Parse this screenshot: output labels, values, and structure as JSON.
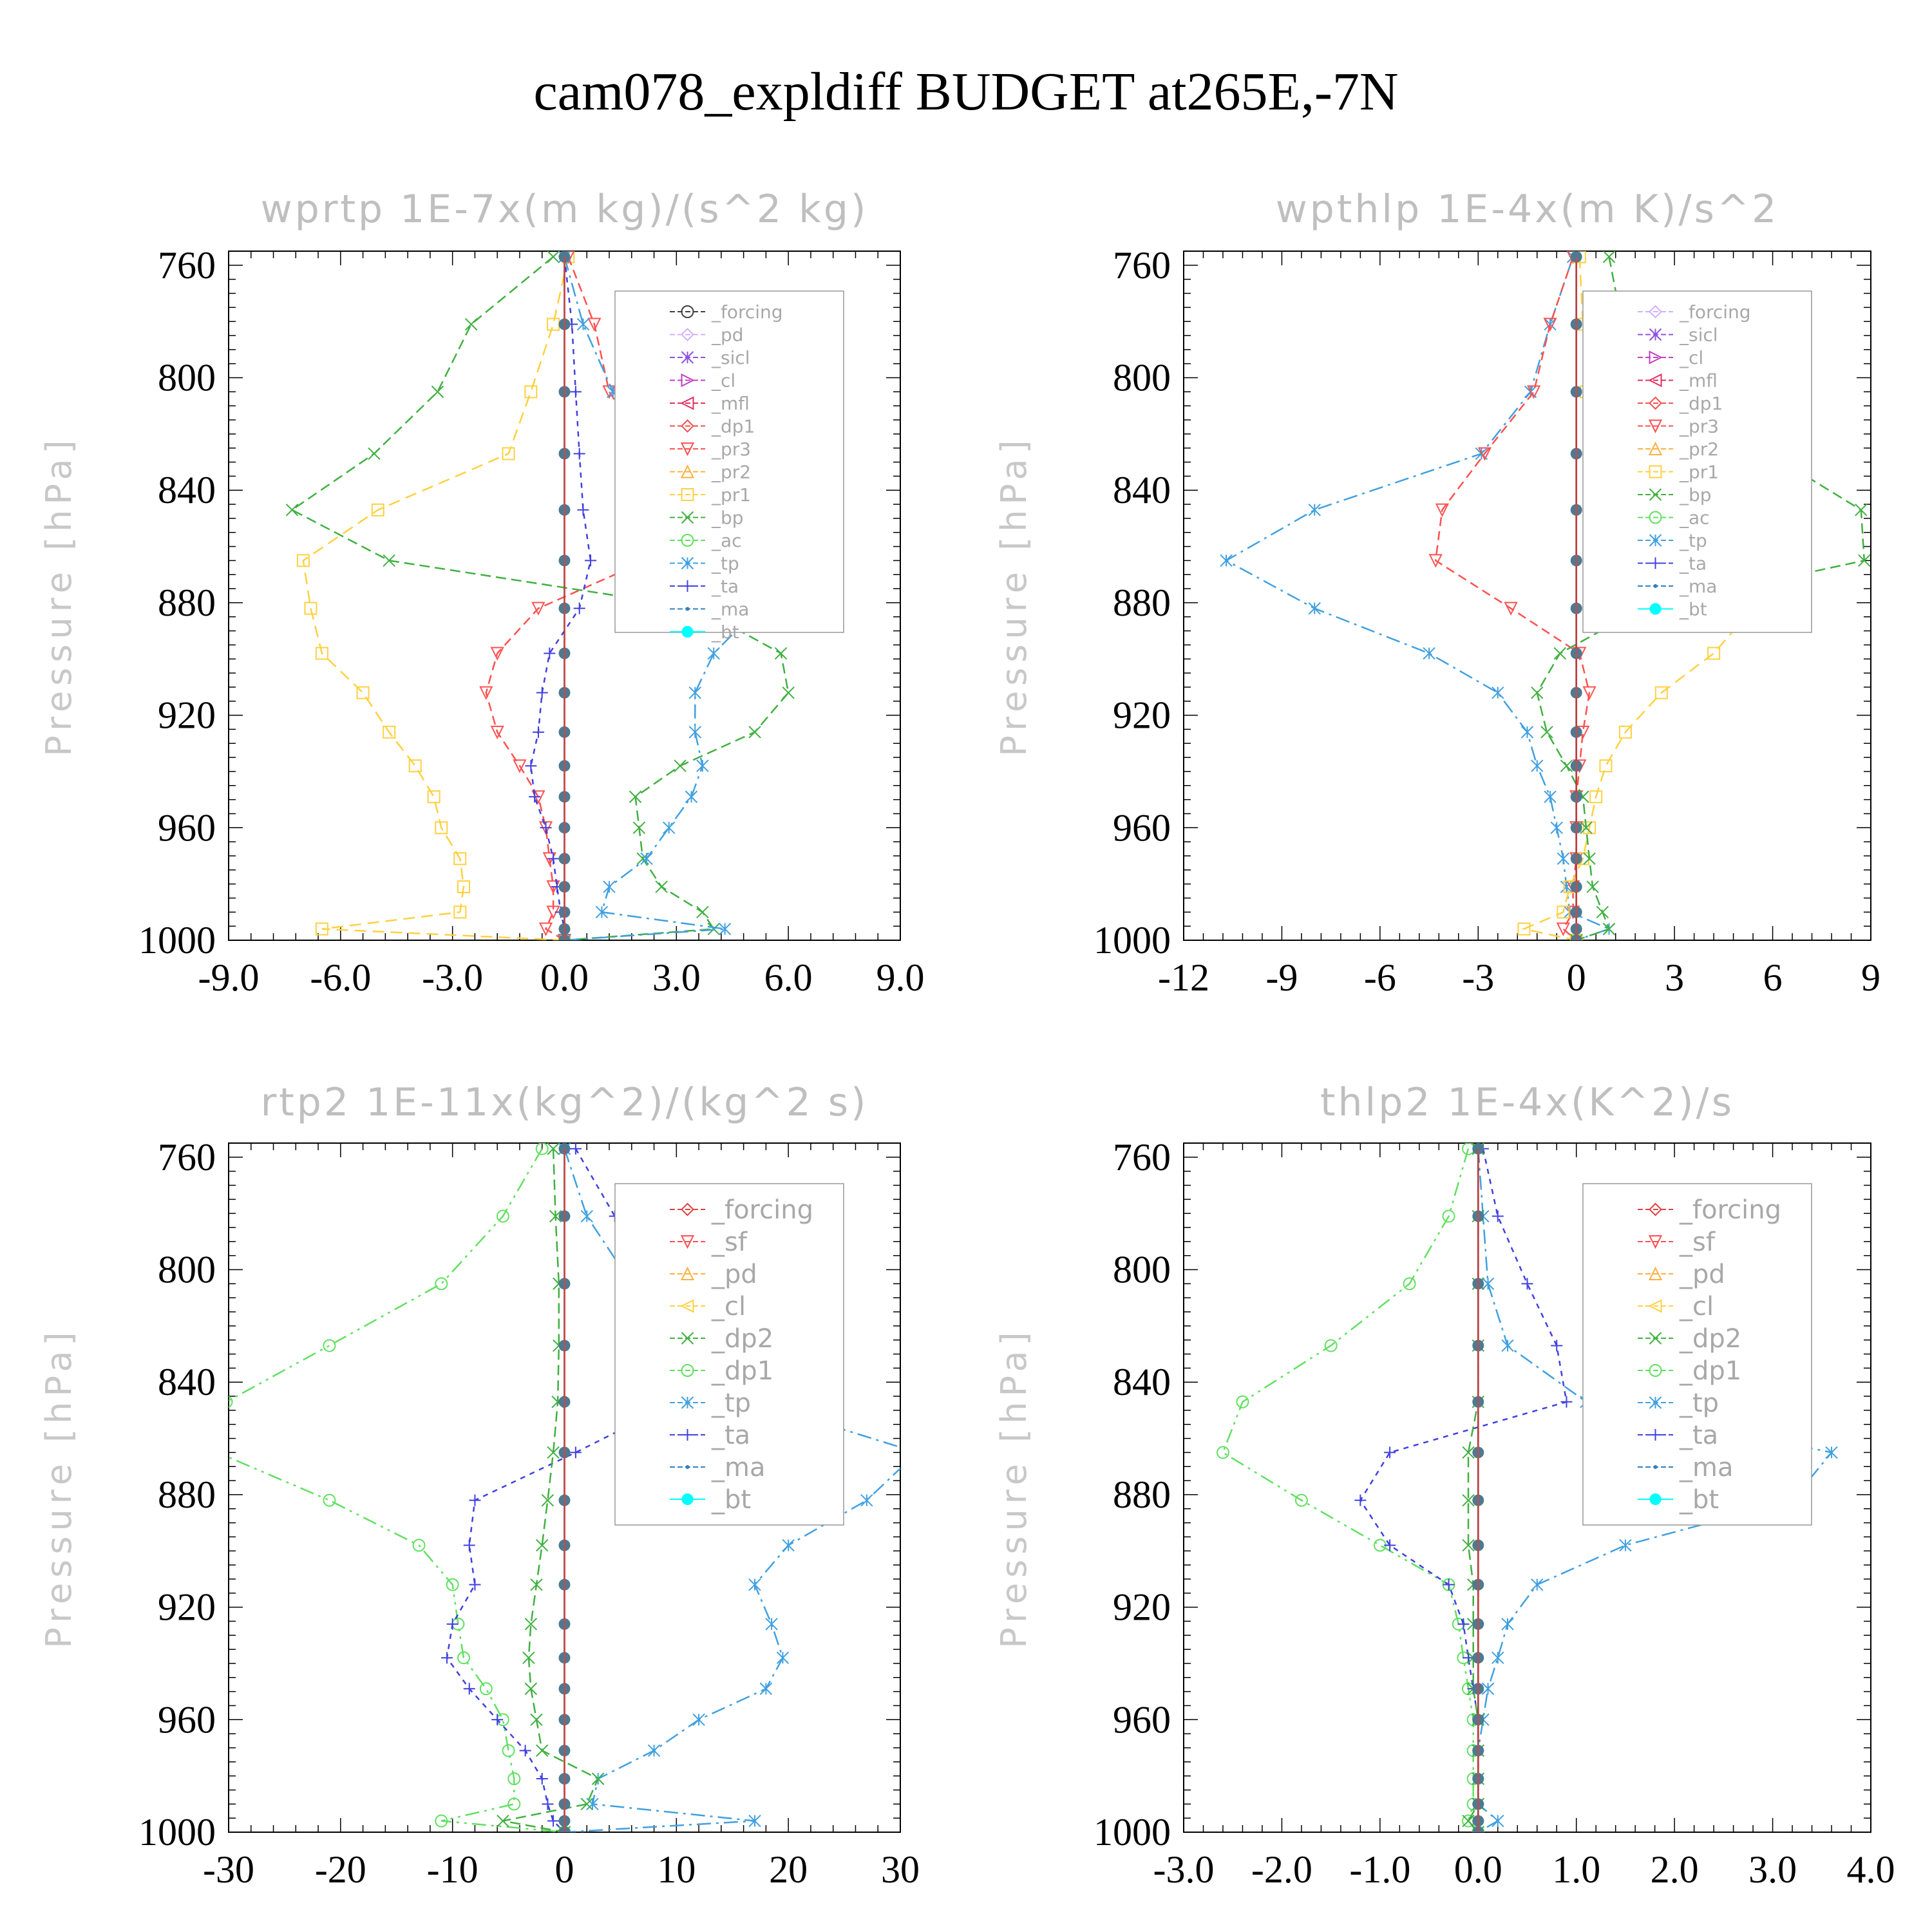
{
  "figure": {
    "title": "cam078_expldiff  BUDGET at265E,-7N"
  },
  "chart_data": [
    {
      "type": "line",
      "title": "wprtp  1E-7x(m kg)/(s^2 kg)",
      "ylabel": "Pressure [hPa]",
      "ylim": [
        1000,
        755
      ],
      "yticks": [
        "760",
        "800",
        "840",
        "880",
        "920",
        "960",
        "1000"
      ],
      "xlim": [
        -9,
        9
      ],
      "xticks": [
        "-9.0",
        "-6.0",
        "-3.0",
        "0.0",
        "3.0",
        "6.0",
        "9.0"
      ],
      "pressure": [
        757,
        781,
        805,
        827,
        847,
        865,
        882,
        898,
        912,
        926,
        938,
        949,
        960,
        971,
        981,
        990,
        996,
        1000
      ],
      "legend": [
        {
          "name": "_forcing",
          "color": "#404040",
          "marker": "circle"
        },
        {
          "name": "_pd",
          "color": "#d0b0ff",
          "marker": "diamond"
        },
        {
          "name": "_sicl",
          "color": "#9050e0",
          "marker": "star"
        },
        {
          "name": "_cl",
          "color": "#c040c0",
          "marker": "tri-right"
        },
        {
          "name": "_mfl",
          "color": "#e03060",
          "marker": "tri-left"
        },
        {
          "name": "_dp1",
          "color": "#f05050",
          "marker": "diamond"
        },
        {
          "name": "_pr3",
          "color": "#ff5050",
          "marker": "tri-down"
        },
        {
          "name": "_pr2",
          "color": "#ffb040",
          "marker": "tri-up"
        },
        {
          "name": "_pr1",
          "color": "#ffd040",
          "marker": "square"
        },
        {
          "name": "_bp",
          "color": "#40b040",
          "marker": "x"
        },
        {
          "name": "_ac",
          "color": "#60e060",
          "marker": "circle"
        },
        {
          "name": "_tp",
          "color": "#40a0e0",
          "marker": "star"
        },
        {
          "name": "_ta",
          "color": "#4040e0",
          "marker": "plus"
        },
        {
          "name": "_ma",
          "color": "#3080c0",
          "marker": "dot"
        },
        {
          "name": "_bt",
          "color": "#00ffff",
          "marker": "filled"
        }
      ],
      "series": [
        {
          "name": "_pr1",
          "values": [
            0.1,
            -0.3,
            -0.9,
            -1.5,
            -5.0,
            -7.0,
            -6.8,
            -6.5,
            -5.4,
            -4.7,
            -4.0,
            -3.5,
            -3.3,
            -2.8,
            -2.7,
            -2.8,
            -6.5,
            0.0
          ]
        },
        {
          "name": "_pr3",
          "values": [
            0.1,
            0.8,
            1.2,
            2.3,
            3.0,
            2.2,
            -0.7,
            -1.8,
            -2.1,
            -1.8,
            -1.2,
            -0.7,
            -0.5,
            -0.4,
            -0.3,
            -0.3,
            -0.5,
            0.0
          ]
        },
        {
          "name": "_bp",
          "values": [
            -0.3,
            -2.5,
            -3.4,
            -5.1,
            -7.3,
            -4.7,
            3.6,
            5.8,
            6.0,
            5.1,
            3.1,
            1.9,
            2.0,
            2.1,
            2.6,
            3.7,
            4.0,
            0.0
          ]
        },
        {
          "name": "_tp",
          "values": [
            0.0,
            0.5,
            1.3,
            2.7,
            4.6,
            6.1,
            5.2,
            4.0,
            3.5,
            3.5,
            3.7,
            3.4,
            2.8,
            2.2,
            1.2,
            1.0,
            4.3,
            0.0
          ]
        },
        {
          "name": "_ta",
          "values": [
            0.0,
            0.2,
            0.3,
            0.4,
            0.5,
            0.7,
            0.4,
            -0.4,
            -0.6,
            -0.7,
            -0.9,
            -0.8,
            -0.5,
            -0.3,
            -0.2,
            -0.1,
            0.0,
            0.0
          ]
        },
        {
          "name": "_forcing",
          "values": [
            0,
            0,
            0,
            0,
            0,
            0,
            0,
            0,
            0,
            0,
            0,
            0,
            0,
            0,
            0,
            0,
            0,
            0
          ]
        }
      ]
    },
    {
      "type": "line",
      "title": "wpthlp  1E-4x(m K)/s^2",
      "ylabel": "Pressure [hPa]",
      "ylim": [
        1000,
        755
      ],
      "yticks": [
        "760",
        "800",
        "840",
        "880",
        "920",
        "960",
        "1000"
      ],
      "xlim": [
        -12,
        9
      ],
      "xticks": [
        "-12",
        "-9",
        "-6",
        "-3",
        "0",
        "3",
        "6",
        "9"
      ],
      "pressure": [
        757,
        781,
        805,
        827,
        847,
        865,
        882,
        898,
        912,
        926,
        938,
        949,
        960,
        971,
        981,
        990,
        996,
        1000
      ],
      "legend": [
        {
          "name": "_forcing",
          "color": "#d0b0ff",
          "marker": "diamond"
        },
        {
          "name": "_sicl",
          "color": "#9050e0",
          "marker": "star"
        },
        {
          "name": "_cl",
          "color": "#c040c0",
          "marker": "tri-right"
        },
        {
          "name": "_mfl",
          "color": "#e03060",
          "marker": "tri-left"
        },
        {
          "name": "_dp1",
          "color": "#f05050",
          "marker": "diamond"
        },
        {
          "name": "_pr3",
          "color": "#ff5050",
          "marker": "tri-down"
        },
        {
          "name": "_pr2",
          "color": "#ffb040",
          "marker": "tri-up"
        },
        {
          "name": "_pr1",
          "color": "#ffd040",
          "marker": "square"
        },
        {
          "name": "_bp",
          "color": "#40b040",
          "marker": "x"
        },
        {
          "name": "_ac",
          "color": "#60e060",
          "marker": "circle"
        },
        {
          "name": "_tp",
          "color": "#40a0e0",
          "marker": "star"
        },
        {
          "name": "_ta",
          "color": "#4040e0",
          "marker": "plus"
        },
        {
          "name": "_ma",
          "color": "#3080c0",
          "marker": "dot"
        },
        {
          "name": "_bt",
          "color": "#00ffff",
          "marker": "filled"
        }
      ],
      "series": [
        {
          "name": "_tp",
          "values": [
            -0.1,
            -0.8,
            -1.4,
            -2.9,
            -8.0,
            -10.7,
            -8.0,
            -4.5,
            -2.4,
            -1.5,
            -1.2,
            -0.8,
            -0.6,
            -0.4,
            -0.3,
            -0.2,
            1.0,
            0.0
          ]
        },
        {
          "name": "_pr3",
          "values": [
            -0.1,
            -0.8,
            -1.3,
            -2.8,
            -4.1,
            -4.3,
            -2.0,
            0.1,
            0.4,
            0.2,
            0.1,
            0.0,
            0.0,
            0.0,
            -0.1,
            -0.1,
            -0.4,
            0.0
          ]
        },
        {
          "name": "_pr1",
          "values": [
            0.1,
            0.2,
            0.3,
            0.8,
            3.0,
            5.2,
            5.4,
            4.2,
            2.6,
            1.5,
            0.9,
            0.6,
            0.4,
            0.2,
            -0.2,
            -0.4,
            -1.6,
            0.0
          ]
        },
        {
          "name": "_bp",
          "values": [
            1.0,
            1.4,
            2.0,
            5.9,
            8.7,
            8.8,
            2.0,
            -0.5,
            -1.2,
            -0.9,
            -0.3,
            0.2,
            0.3,
            0.4,
            0.5,
            0.8,
            1.0,
            0.0
          ]
        },
        {
          "name": "_forcing",
          "values": [
            0,
            0,
            0,
            0,
            0,
            0,
            0,
            0,
            0,
            0,
            0,
            0,
            0,
            0,
            0,
            0,
            0,
            0
          ]
        }
      ]
    },
    {
      "type": "line",
      "title": "rtp2  1E-11x(kg^2)/(kg^2 s)",
      "ylabel": "Pressure [hPa]",
      "ylim": [
        1000,
        755
      ],
      "yticks": [
        "760",
        "800",
        "840",
        "880",
        "920",
        "960",
        "1000"
      ],
      "xlim": [
        -30,
        30
      ],
      "xticks": [
        "-30",
        "-20",
        "-10",
        "0",
        "10",
        "20",
        "30"
      ],
      "pressure": [
        757,
        781,
        805,
        827,
        847,
        865,
        882,
        898,
        912,
        926,
        938,
        949,
        960,
        971,
        981,
        990,
        996,
        1000
      ],
      "legend": [
        {
          "name": "_forcing",
          "color": "#e04040",
          "marker": "diamond"
        },
        {
          "name": "_sf",
          "color": "#ff5050",
          "marker": "tri-down"
        },
        {
          "name": "_pd",
          "color": "#ffb040",
          "marker": "tri-up"
        },
        {
          "name": "_cl",
          "color": "#ffd040",
          "marker": "tri-left"
        },
        {
          "name": "_dp2",
          "color": "#40b040",
          "marker": "x"
        },
        {
          "name": "_dp1",
          "color": "#60e060",
          "marker": "circle"
        },
        {
          "name": "_tp",
          "color": "#40a0e0",
          "marker": "star"
        },
        {
          "name": "_ta",
          "color": "#4040e0",
          "marker": "plus"
        },
        {
          "name": "_ma",
          "color": "#3080c0",
          "marker": "dot"
        },
        {
          "name": "_bt",
          "color": "#00ffff",
          "marker": "filled"
        }
      ],
      "series": [
        {
          "name": "_dp1",
          "values": [
            -2.0,
            -5.5,
            -11.0,
            -21.0,
            -30.2,
            -31.0,
            -21.0,
            -13.0,
            -10.0,
            -9.5,
            -9.0,
            -7.0,
            -5.5,
            -5.0,
            -4.5,
            -4.5,
            -11.0,
            0.0
          ]
        },
        {
          "name": "_tp",
          "values": [
            0.0,
            2.0,
            6.0,
            10.0,
            17.0,
            31.5,
            27.0,
            20.0,
            17.0,
            18.5,
            19.5,
            18.0,
            12.0,
            8.0,
            3.0,
            2.5,
            17.0,
            0.0
          ]
        },
        {
          "name": "_ta",
          "values": [
            1.0,
            4.5,
            7.0,
            9.0,
            10.0,
            1.0,
            -8.0,
            -8.5,
            -8.0,
            -10.0,
            -10.5,
            -8.5,
            -6.0,
            -3.5,
            -2.0,
            -1.5,
            -1.0,
            0.0
          ]
        },
        {
          "name": "_dp2",
          "values": [
            -1.0,
            -0.8,
            -0.5,
            -0.5,
            -0.6,
            -1.0,
            -1.5,
            -2.0,
            -2.5,
            -3.0,
            -3.2,
            -3.0,
            -2.5,
            -2.0,
            3.0,
            2.0,
            -5.5,
            0.0
          ]
        },
        {
          "name": "_forcing",
          "values": [
            0,
            0,
            0,
            0,
            0,
            0,
            0,
            0,
            0,
            0,
            0,
            0,
            0,
            0,
            0,
            0,
            0,
            0
          ]
        }
      ]
    },
    {
      "type": "line",
      "title": "thlp2  1E-4x(K^2)/s",
      "ylabel": "Pressure [hPa]",
      "ylim": [
        1000,
        755
      ],
      "yticks": [
        "760",
        "800",
        "840",
        "880",
        "920",
        "960",
        "1000"
      ],
      "xlim": [
        -3,
        4
      ],
      "xticks": [
        "-3.0",
        "-2.0",
        "-1.0",
        "0.0",
        "1.0",
        "2.0",
        "3.0",
        "4.0"
      ],
      "pressure": [
        757,
        781,
        805,
        827,
        847,
        865,
        882,
        898,
        912,
        926,
        938,
        949,
        960,
        971,
        981,
        990,
        996,
        1000
      ],
      "legend": [
        {
          "name": "_forcing",
          "color": "#e04040",
          "marker": "diamond"
        },
        {
          "name": "_sf",
          "color": "#ff5050",
          "marker": "tri-down"
        },
        {
          "name": "_pd",
          "color": "#ffb040",
          "marker": "tri-up"
        },
        {
          "name": "_cl",
          "color": "#ffd040",
          "marker": "tri-left"
        },
        {
          "name": "_dp2",
          "color": "#40b040",
          "marker": "x"
        },
        {
          "name": "_dp1",
          "color": "#60e060",
          "marker": "circle"
        },
        {
          "name": "_tp",
          "color": "#40a0e0",
          "marker": "star"
        },
        {
          "name": "_ta",
          "color": "#4040e0",
          "marker": "plus"
        },
        {
          "name": "_ma",
          "color": "#3080c0",
          "marker": "dot"
        },
        {
          "name": "_bt",
          "color": "#00ffff",
          "marker": "filled"
        }
      ],
      "series": [
        {
          "name": "_dp1",
          "values": [
            -0.1,
            -0.3,
            -0.7,
            -1.5,
            -2.4,
            -2.6,
            -1.8,
            -1.0,
            -0.3,
            -0.2,
            -0.15,
            -0.1,
            -0.05,
            -0.05,
            -0.05,
            -0.05,
            -0.1,
            0.0
          ]
        },
        {
          "name": "_tp",
          "values": [
            0.0,
            0.05,
            0.1,
            0.3,
            1.1,
            3.6,
            3.2,
            1.5,
            0.6,
            0.3,
            0.2,
            0.1,
            0.05,
            0.0,
            0.0,
            0.0,
            0.2,
            0.0
          ]
        },
        {
          "name": "_ta",
          "values": [
            0.05,
            0.2,
            0.5,
            0.8,
            0.9,
            -0.9,
            -1.2,
            -0.9,
            -0.3,
            -0.15,
            -0.1,
            -0.05,
            0.0,
            0.0,
            0.0,
            0.0,
            0.0,
            0.0
          ]
        },
        {
          "name": "_dp2",
          "values": [
            0.0,
            0.0,
            0.0,
            0.0,
            0.0,
            -0.1,
            -0.1,
            -0.1,
            -0.05,
            -0.05,
            -0.05,
            -0.05,
            0.0,
            0.0,
            0.0,
            0.0,
            -0.1,
            0.0
          ]
        },
        {
          "name": "_forcing",
          "values": [
            0,
            0,
            0,
            0,
            0,
            0,
            0,
            0,
            0,
            0,
            0,
            0,
            0,
            0,
            0,
            0,
            0,
            0
          ]
        }
      ]
    }
  ]
}
